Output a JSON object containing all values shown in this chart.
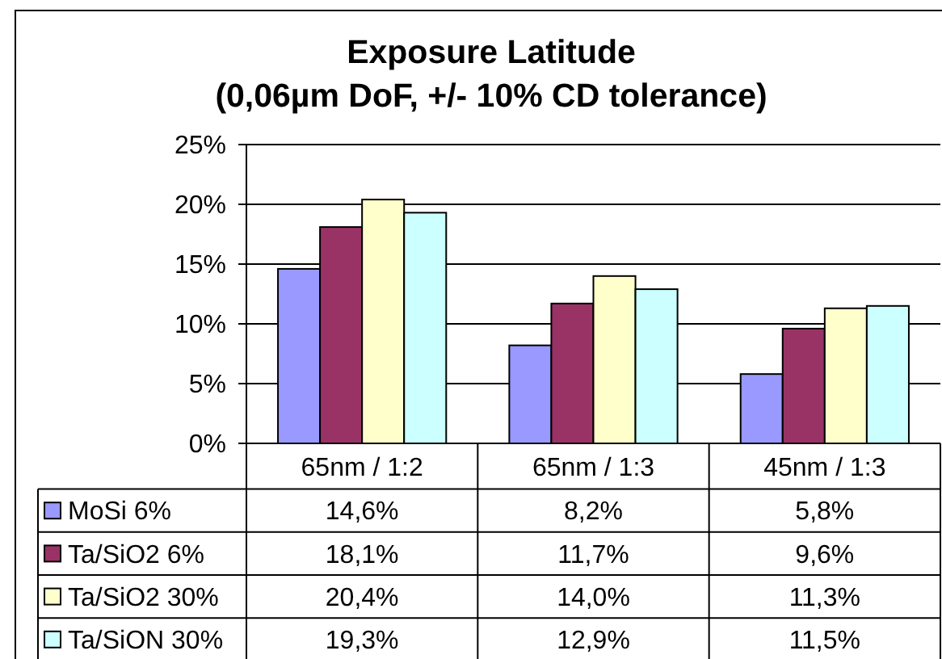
{
  "chart_data": {
    "type": "bar",
    "title": "Exposure Latitude\n(0,06µm DoF, +/- 10% CD tolerance)",
    "categories": [
      "65nm / 1:2",
      "65nm / 1:3",
      "45nm / 1:3"
    ],
    "series": [
      {
        "name": "MoSi 6%",
        "color": "#9999ff",
        "values": [
          14.6,
          8.2,
          5.8
        ],
        "value_labels": [
          "14,6%",
          "8,2%",
          "5,8%"
        ]
      },
      {
        "name": "Ta/SiO2 6%",
        "color": "#993366",
        "values": [
          18.1,
          11.7,
          9.6
        ],
        "value_labels": [
          "18,1%",
          "11,7%",
          "9,6%"
        ]
      },
      {
        "name": "Ta/SiO2 30%",
        "color": "#ffffcc",
        "values": [
          20.4,
          14.0,
          11.3
        ],
        "value_labels": [
          "20,4%",
          "14,0%",
          "11,3%"
        ]
      },
      {
        "name": "Ta/SiON 30%",
        "color": "#ccffff",
        "values": [
          19.3,
          12.9,
          11.5
        ],
        "value_labels": [
          "19,3%",
          "12,9%",
          "11,5%"
        ]
      }
    ],
    "ylim": [
      0,
      25
    ],
    "yticks": [
      {
        "value": 0,
        "label": "0%"
      },
      {
        "value": 5,
        "label": "5%"
      },
      {
        "value": 10,
        "label": "10%"
      },
      {
        "value": 15,
        "label": "15%"
      },
      {
        "value": 20,
        "label": "20%"
      },
      {
        "value": 25,
        "label": "25%"
      }
    ],
    "grid": "y",
    "legend": "bottom"
  }
}
